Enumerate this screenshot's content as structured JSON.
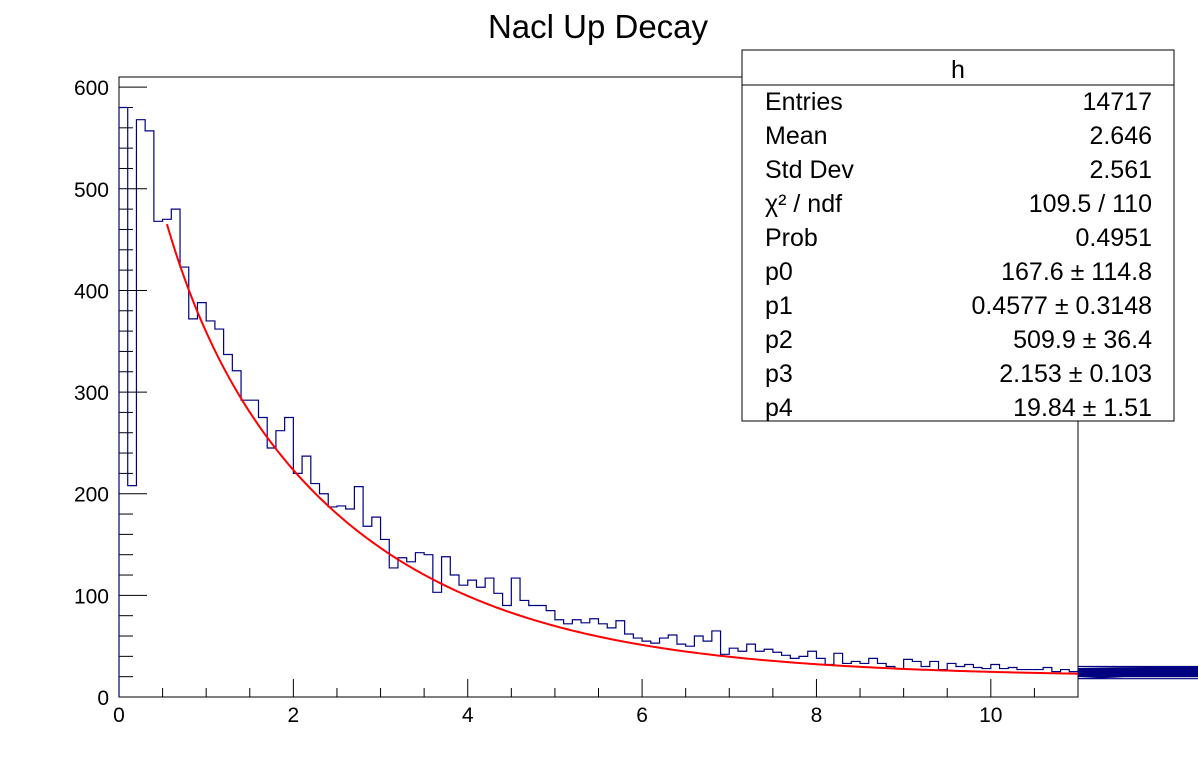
{
  "chart_data": {
    "type": "bar",
    "title": "Nacl Up Decay",
    "xlabel": "",
    "ylabel": "",
    "xlim": [
      0,
      11
    ],
    "ylim": [
      0,
      610
    ],
    "xticks": [
      0,
      2,
      4,
      6,
      8,
      10
    ],
    "yticks": [
      0,
      100,
      200,
      300,
      400,
      500,
      600
    ],
    "grid": false,
    "bin_width": 0.1,
    "series": [
      {
        "kind": "histogram",
        "color": "#000080",
        "x_start": 0.0,
        "values": [
          580,
          208,
          568,
          557,
          468,
          470,
          480,
          423,
          372,
          388,
          370,
          362,
          337,
          321,
          292,
          292,
          275,
          245,
          262,
          275,
          220,
          237,
          210,
          200,
          187,
          188,
          185,
          207,
          168,
          177,
          155,
          127,
          137,
          133,
          142,
          140,
          103,
          138,
          120,
          110,
          115,
          108,
          117,
          102,
          90,
          117,
          95,
          90,
          90,
          85,
          76,
          72,
          76,
          73,
          77,
          72,
          68,
          75,
          62,
          58,
          55,
          53,
          58,
          61,
          52,
          50,
          60,
          55,
          65,
          42,
          48,
          45,
          52,
          45,
          47,
          44,
          41,
          38,
          40,
          45,
          38,
          32,
          43,
          33,
          35,
          33,
          38,
          33,
          30,
          28,
          37,
          35,
          30,
          35,
          27,
          33,
          30,
          32,
          29,
          28,
          32,
          28,
          29,
          27,
          27,
          27,
          29,
          25,
          27,
          25,
          27,
          28,
          22,
          22,
          20,
          27,
          23,
          25,
          22,
          25,
          26,
          28,
          27,
          25,
          22,
          28,
          25,
          26,
          21,
          22,
          20,
          23,
          25,
          18,
          27,
          28,
          30,
          28,
          27,
          24
        ]
      },
      {
        "kind": "fit-curve",
        "color": "#ff0000",
        "x_range": [
          0.55,
          11.0
        ],
        "params": {
          "p0": 167.6,
          "p1": 0.4577,
          "p2": 509.9,
          "p3": 2.153,
          "p4": 19.84
        }
      }
    ],
    "stats_box": {
      "title": "h",
      "rows": [
        {
          "label": "Entries",
          "value": "14717"
        },
        {
          "label": "Mean",
          "value": "2.646"
        },
        {
          "label": "Std Dev",
          "value": "2.561"
        },
        {
          "label": "χ² / ndf",
          "value": "109.5 / 110"
        },
        {
          "label": "Prob",
          "value": "0.4951"
        },
        {
          "label": "p0",
          "value": "167.6 ± 114.8"
        },
        {
          "label": "p1",
          "value": "0.4577 ± 0.3148"
        },
        {
          "label": "p2",
          "value": "509.9 ± 36.4"
        },
        {
          "label": "p3",
          "value": "2.153 ± 0.103"
        },
        {
          "label": "p4",
          "value": "19.84 ± 1.51"
        }
      ]
    }
  }
}
